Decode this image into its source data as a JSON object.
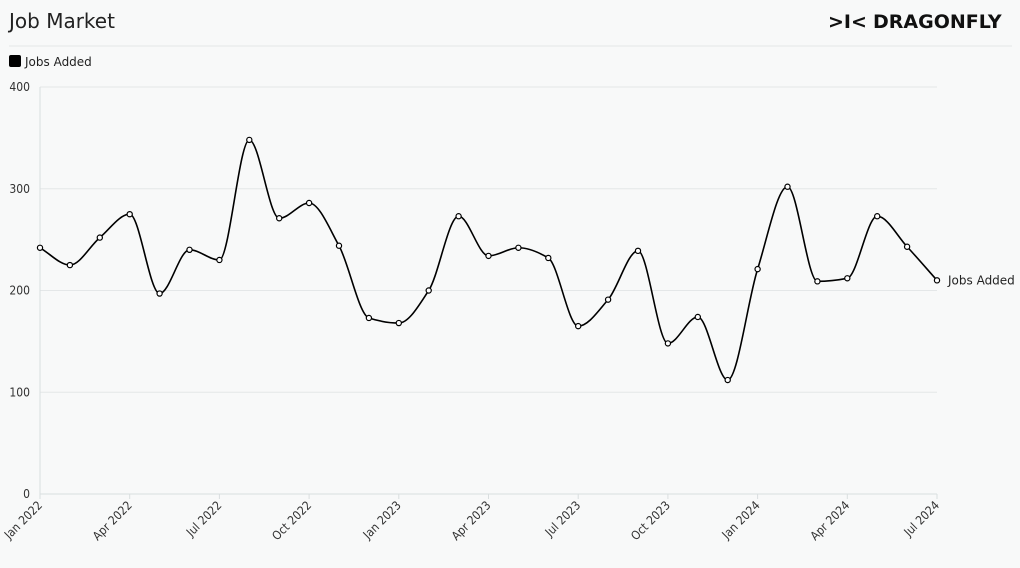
{
  "header": {
    "title": "Job Market",
    "brand_mark": ">I<",
    "brand_name": "DRAGONFLY"
  },
  "colors": {
    "line": "#000000",
    "grid": "#e4e7e8",
    "axis": "#d9dedf",
    "background": "#f8f9f9",
    "marker_fill": "#ffffff"
  },
  "chart_data": {
    "type": "line",
    "title": "Job Market",
    "xlabel": "",
    "ylabel": "",
    "ylim": [
      0,
      400
    ],
    "yticks": [
      0,
      100,
      200,
      300,
      400
    ],
    "grid": true,
    "legend": "top-left",
    "x_tick_labels": [
      "Jan 2022",
      "Apr 2022",
      "Jul 2022",
      "Oct 2022",
      "Jan 2023",
      "Apr 2023",
      "Jul 2023",
      "Oct 2023",
      "Jan 2024",
      "Apr 2024",
      "Jul 2024"
    ],
    "x": [
      "Jan 2022",
      "Feb 2022",
      "Mar 2022",
      "Apr 2022",
      "May 2022",
      "Jun 2022",
      "Jul 2022",
      "Aug 2022",
      "Sep 2022",
      "Oct 2022",
      "Nov 2022",
      "Dec 2022",
      "Jan 2023",
      "Feb 2023",
      "Mar 2023",
      "Apr 2023",
      "May 2023",
      "Jun 2023",
      "Jul 2023",
      "Aug 2023",
      "Sep 2023",
      "Oct 2023",
      "Nov 2023",
      "Dec 2023",
      "Jan 2024",
      "Feb 2024",
      "Mar 2024",
      "Apr 2024",
      "May 2024",
      "Jun 2024",
      "Jul 2024"
    ],
    "series": [
      {
        "name": "Jobs Added",
        "values": [
          242,
          225,
          252,
          275,
          197,
          240,
          230,
          348,
          271,
          286,
          244,
          173,
          168,
          200,
          273,
          234,
          242,
          232,
          165,
          191,
          239,
          148,
          174,
          112,
          221,
          302,
          209,
          212,
          273,
          243,
          210
        ]
      }
    ]
  }
}
